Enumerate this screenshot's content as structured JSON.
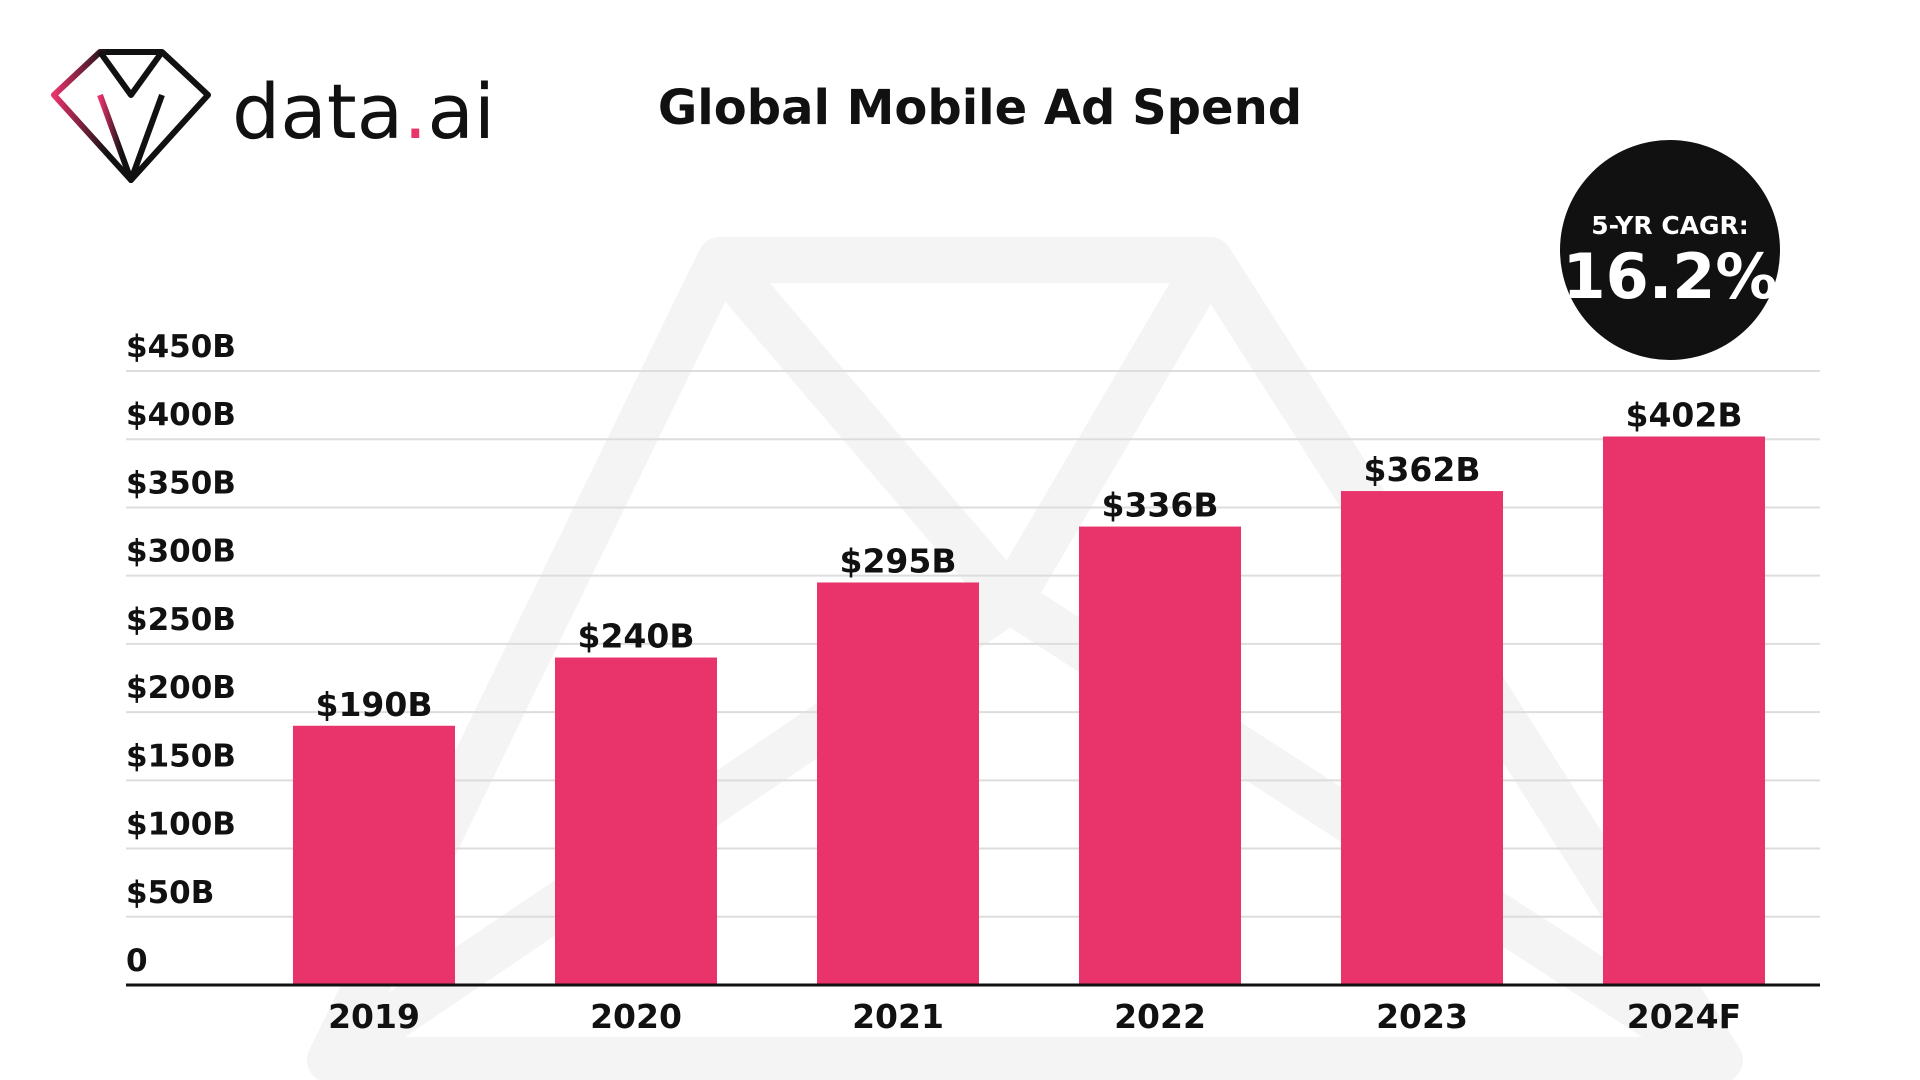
{
  "brand": {
    "name_main": "data",
    "name_dot": ".",
    "name_suffix": "ai",
    "logo_icon": "diamond-icon",
    "accent_color": "#E8336B"
  },
  "badge": {
    "caption": "5-YR CAGR:",
    "value": "16.2%"
  },
  "chart_data": {
    "type": "bar",
    "title": "Global Mobile Ad Spend",
    "xlabel": "",
    "ylabel": "",
    "categories": [
      "2019",
      "2020",
      "2021",
      "2022",
      "2023",
      "2024F"
    ],
    "values": [
      190,
      240,
      295,
      336,
      362,
      402
    ],
    "value_labels": [
      "$190B",
      "$240B",
      "$295B",
      "$336B",
      "$362B",
      "$402B"
    ],
    "ylim": [
      0,
      450
    ],
    "yticks": [
      0,
      50,
      100,
      150,
      200,
      250,
      300,
      350,
      400,
      450
    ],
    "ytick_labels": [
      "0",
      "$50B",
      "$100B",
      "$150B",
      "$200B",
      "$250B",
      "$300B",
      "$350B",
      "$400B",
      "$450B"
    ],
    "grid": true,
    "legend": "none",
    "bar_color": "#E8336B"
  }
}
